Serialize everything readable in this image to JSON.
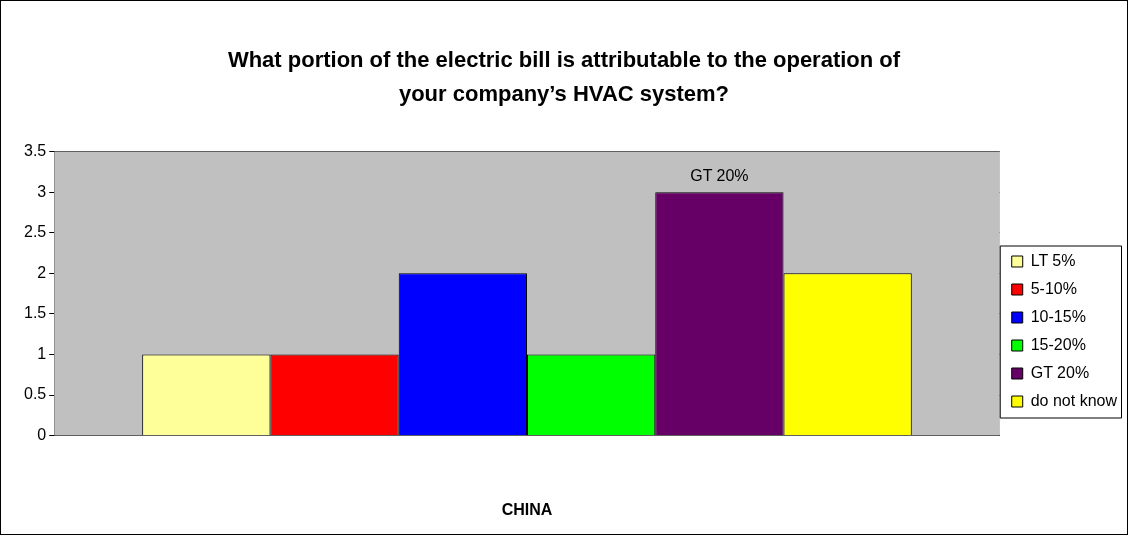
{
  "chart_data": {
    "type": "bar",
    "title": "What portion of the electric bill is attributable to the operation of your company’s HVAC system?",
    "xlabel": "CHINA",
    "categories": [
      null
    ],
    "ylim": [
      0,
      3.5
    ],
    "yticks": [
      0,
      0.5,
      1,
      1.5,
      2,
      2.5,
      3,
      3.5
    ],
    "grid": "y",
    "legend": "right",
    "series": [
      {
        "name": "LT 5%",
        "color": "#ffff99",
        "values": [
          1
        ]
      },
      {
        "name": "5-10%",
        "color": "#ff0000",
        "values": [
          1
        ]
      },
      {
        "name": "10-15%",
        "color": "#0000ff",
        "values": [
          2
        ]
      },
      {
        "name": "15-20%",
        "color": "#00ff00",
        "values": [
          1
        ]
      },
      {
        "name": "GT 20%",
        "color": "#660066",
        "values": [
          3
        ],
        "value_labels": [
          "GT 20%"
        ]
      },
      {
        "name": "do not know",
        "color": "#ffff00",
        "values": [
          2
        ]
      }
    ]
  }
}
